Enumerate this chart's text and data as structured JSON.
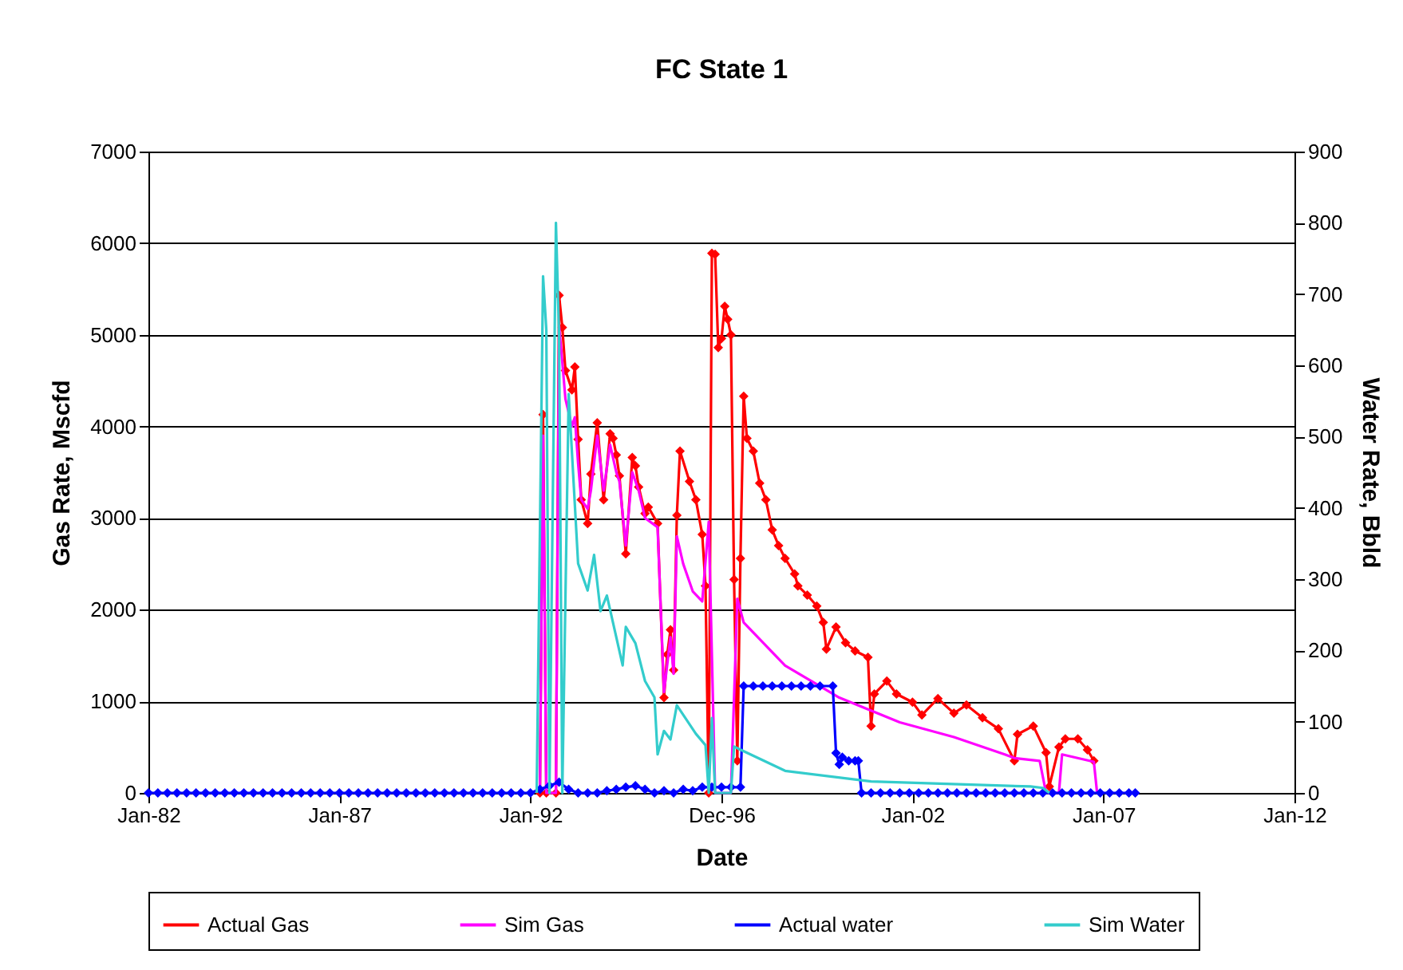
{
  "chart_data": {
    "type": "line",
    "title": "FC State 1",
    "xlabel": "Date",
    "ylabel": "Gas Rate, Mscfd",
    "y2label": "Water Rate, Bbld",
    "xlim": [
      "1982-01",
      "2012-01"
    ],
    "xticks": [
      {
        "value": "1982-01",
        "label": "Jan-82"
      },
      {
        "value": "1987-01",
        "label": "Jan-87"
      },
      {
        "value": "1992-01",
        "label": "Jan-92"
      },
      {
        "value": "1996-12-31",
        "label": "Dec-96"
      },
      {
        "value": "2002-01",
        "label": "Jan-02"
      },
      {
        "value": "2007-01",
        "label": "Jan-07"
      },
      {
        "value": "2012-01",
        "label": "Jan-12"
      }
    ],
    "ylim": [
      0,
      7000
    ],
    "yticks": [
      0,
      1000,
      2000,
      3000,
      4000,
      5000,
      6000,
      7000
    ],
    "y2lim": [
      0,
      900
    ],
    "y2ticks": [
      0,
      100,
      200,
      300,
      400,
      500,
      600,
      700,
      800,
      900
    ],
    "grid": "y",
    "legend": "bottom",
    "series": [
      {
        "name": "Actual Gas",
        "color": "#ff0000",
        "marker": "diamond",
        "x": [
          "1992-04",
          "1992-05",
          "1992-06",
          "1992-09",
          "1992-10",
          "1992-11",
          "1992-12",
          "1993-02",
          "1993-03",
          "1993-04",
          "1993-05",
          "1993-07",
          "1993-08",
          "1993-10",
          "1993-12",
          "1994-02",
          "1994-03",
          "1994-04",
          "1994-05",
          "1994-07",
          "1994-09",
          "1994-10",
          "1994-11",
          "1995-01",
          "1995-02",
          "1995-05",
          "1995-07",
          "1995-08",
          "1995-09",
          "1995-10",
          "1995-11",
          "1995-12",
          "1996-03",
          "1996-05",
          "1996-07",
          "1996-08",
          "1996-09",
          "1996-10",
          "1996-11",
          "1996-12",
          "1997-01",
          "1997-02",
          "1997-03",
          "1997-04",
          "1997-05",
          "1997-06",
          "1997-07",
          "1997-08",
          "1997-09",
          "1997-11",
          "1998-01",
          "1998-03",
          "1998-05",
          "1998-07",
          "1998-09",
          "1998-12",
          "1999-01",
          "1999-04",
          "1999-07",
          "1999-09",
          "1999-10",
          "2000-01",
          "2000-04",
          "2000-07",
          "2000-11",
          "2000-12",
          "2001-01",
          "2001-05",
          "2001-08",
          "2002-01",
          "2002-04",
          "2002-09",
          "2003-02",
          "2003-06",
          "2003-11",
          "2004-04",
          "2004-09",
          "2004-10",
          "2005-03",
          "2005-07",
          "2005-08",
          "2005-11",
          "2006-01",
          "2006-05",
          "2006-08",
          "2006-10"
        ],
        "values": [
          0,
          4130,
          0,
          0,
          5430,
          5080,
          4610,
          4400,
          4650,
          3860,
          3200,
          2940,
          3480,
          4040,
          3200,
          3920,
          3870,
          3690,
          3460,
          2610,
          3660,
          3570,
          3340,
          3050,
          3120,
          2940,
          1040,
          1510,
          1780,
          1340,
          3030,
          3730,
          3400,
          3200,
          2820,
          2260,
          0,
          5890,
          5880,
          4860,
          4960,
          5310,
          5170,
          5000,
          2330,
          350,
          2560,
          4330,
          3870,
          3730,
          3380,
          3200,
          2870,
          2700,
          2560,
          2390,
          2260,
          2160,
          2040,
          1860,
          1570,
          1810,
          1640,
          1550,
          1480,
          730,
          1080,
          1220,
          1080,
          990,
          850,
          1030,
          870,
          960,
          820,
          700,
          350,
          640,
          730,
          440,
          70,
          500,
          590,
          590,
          470,
          350
        ]
      },
      {
        "name": "Sim Gas",
        "color": "#ff00ff",
        "marker": "none",
        "x": [
          "1992-04",
          "1992-05",
          "1992-06",
          "1992-09",
          "1992-10",
          "1992-11",
          "1992-12",
          "1993-02",
          "1993-03",
          "1993-04",
          "1993-05",
          "1993-07",
          "1993-08",
          "1993-10",
          "1993-12",
          "1994-02",
          "1994-04",
          "1994-05",
          "1994-07",
          "1994-09",
          "1994-11",
          "1995-01",
          "1995-05",
          "1995-07",
          "1995-09",
          "1995-10",
          "1995-11",
          "1996-01",
          "1996-04",
          "1996-07",
          "1996-09",
          "1996-11",
          "1997-04",
          "1997-06",
          "1997-08",
          "1998-09",
          "2000-02",
          "2001-09",
          "2003-02",
          "2004-06",
          "2004-09",
          "2005-05",
          "2005-07",
          "2005-11",
          "2005-12",
          "2006-10",
          "2006-11"
        ],
        "values": [
          0,
          3900,
          0,
          0,
          5100,
          4700,
          4300,
          4000,
          4100,
          3600,
          3200,
          3100,
          3300,
          3900,
          3300,
          3800,
          3500,
          3400,
          2700,
          3500,
          3300,
          3000,
          2900,
          1100,
          1700,
          1300,
          2800,
          2500,
          2200,
          2090,
          2960,
          0,
          0,
          2120,
          1860,
          1390,
          1040,
          770,
          610,
          420,
          380,
          350,
          0,
          0,
          420,
          340,
          0
        ]
      },
      {
        "name": "Actual water",
        "color": "#0000ff",
        "marker": "diamond",
        "axis": "y2",
        "x": [
          "1982-01",
          "1982-04",
          "1982-07",
          "1982-10",
          "1983-01",
          "1983-04",
          "1983-07",
          "1983-10",
          "1984-01",
          "1984-04",
          "1984-07",
          "1984-10",
          "1985-01",
          "1985-04",
          "1985-07",
          "1985-10",
          "1986-01",
          "1986-04",
          "1986-07",
          "1986-10",
          "1987-01",
          "1987-04",
          "1987-07",
          "1987-10",
          "1988-01",
          "1988-04",
          "1988-07",
          "1988-10",
          "1989-01",
          "1989-04",
          "1989-07",
          "1989-10",
          "1990-01",
          "1990-04",
          "1990-07",
          "1990-10",
          "1991-01",
          "1991-04",
          "1991-07",
          "1991-10",
          "1992-01",
          "1992-04",
          "1992-07",
          "1992-10",
          "1993-01",
          "1993-04",
          "1993-07",
          "1993-10",
          "1994-01",
          "1994-04",
          "1994-07",
          "1994-10",
          "1995-01",
          "1995-04",
          "1995-07",
          "1995-10",
          "1996-01",
          "1996-04",
          "1996-07",
          "1996-10",
          "1997-01",
          "1997-04",
          "1997-07",
          "1997-08",
          "1997-11",
          "1998-02",
          "1998-05",
          "1998-08",
          "1998-11",
          "1999-02",
          "1999-05",
          "1999-08",
          "1999-12",
          "2000-01",
          "2000-02",
          "2000-03",
          "2000-05",
          "2000-07",
          "2000-08",
          "2000-09",
          "2000-12",
          "2001-03",
          "2001-06",
          "2001-09",
          "2001-12",
          "2002-03",
          "2002-06",
          "2002-09",
          "2002-12",
          "2003-03",
          "2003-06",
          "2003-09",
          "2003-12",
          "2004-03",
          "2004-06",
          "2004-09",
          "2004-12",
          "2005-03",
          "2005-06",
          "2005-09",
          "2005-12",
          "2006-03",
          "2006-06",
          "2006-09",
          "2006-12",
          "2007-03",
          "2007-06",
          "2007-09",
          "2007-11"
        ],
        "values": [
          0,
          0,
          0,
          0,
          0,
          0,
          0,
          0,
          0,
          0,
          0,
          0,
          0,
          0,
          0,
          0,
          0,
          0,
          0,
          0,
          0,
          0,
          0,
          0,
          0,
          0,
          0,
          0,
          0,
          0,
          0,
          0,
          0,
          0,
          0,
          0,
          0,
          0,
          0,
          0,
          0,
          5,
          10,
          15,
          5,
          0,
          0,
          0,
          3,
          5,
          8,
          10,
          5,
          0,
          3,
          0,
          5,
          3,
          8,
          8,
          8,
          8,
          8,
          150,
          150,
          150,
          150,
          150,
          150,
          150,
          150,
          150,
          150,
          56,
          40,
          50,
          45,
          45,
          45,
          0,
          0,
          0,
          0,
          0,
          0,
          0,
          0,
          0,
          0,
          0,
          0,
          0,
          0,
          0,
          0,
          0,
          0,
          0,
          0,
          0,
          0,
          0,
          0,
          0,
          0,
          0,
          0,
          0,
          0
        ]
      },
      {
        "name": "Sim Water",
        "color": "#33cccc",
        "marker": "none",
        "axis": "y2",
        "x": [
          "1992-03",
          "1992-05",
          "1992-06",
          "1992-07",
          "1992-09",
          "1992-10",
          "1992-11",
          "1993-01",
          "1993-04",
          "1993-07",
          "1993-09",
          "1993-11",
          "1994-01",
          "1994-06",
          "1994-07",
          "1994-10",
          "1995-01",
          "1995-04",
          "1995-05",
          "1995-07",
          "1995-09",
          "1995-11",
          "1996-05",
          "1996-08",
          "1996-09",
          "1996-10",
          "1996-11",
          "1997-04",
          "1997-05",
          "1998-09",
          "2000-12",
          "2005-02",
          "2005-06",
          "2005-08"
        ],
        "values": [
          0,
          725,
          650,
          0,
          800,
          643,
          0,
          560,
          322,
          284,
          334,
          255,
          277,
          179,
          233,
          210,
          157,
          134,
          54,
          87,
          75,
          123,
          83,
          67,
          0,
          105,
          0,
          0,
          65,
          31,
          16,
          9,
          7,
          0
        ]
      }
    ]
  }
}
